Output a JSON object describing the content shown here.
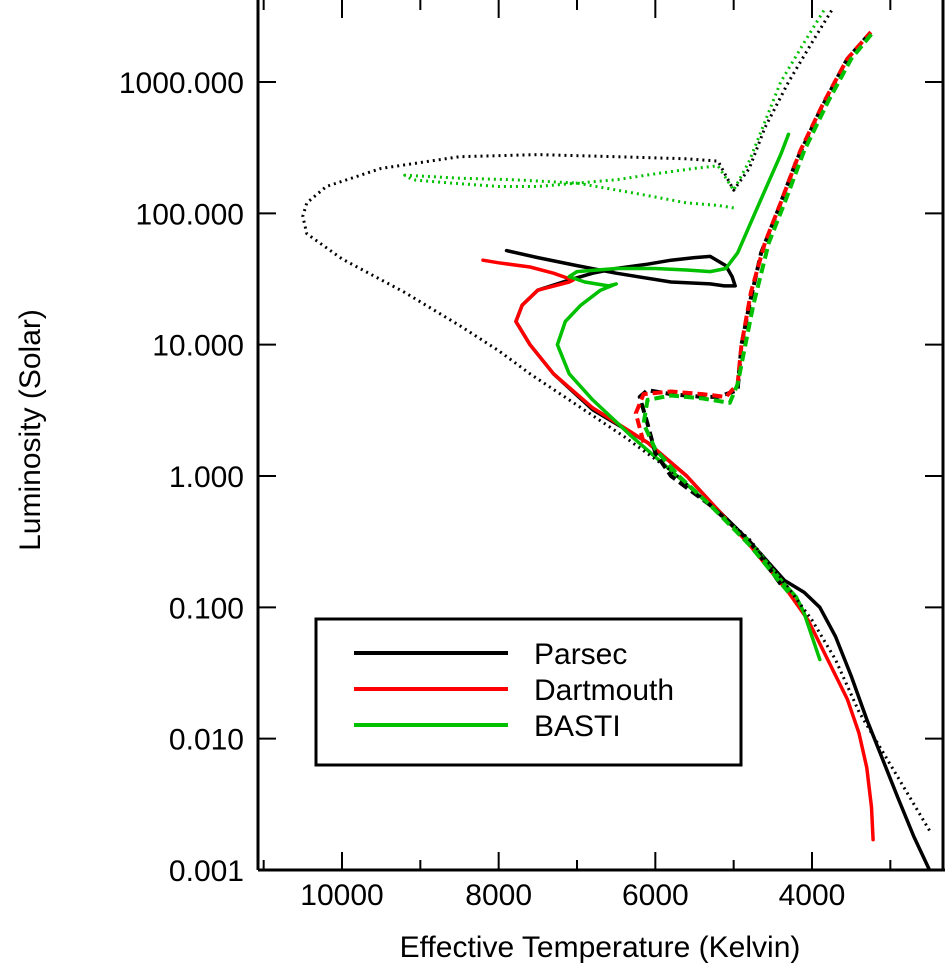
{
  "chart_data": {
    "type": "line",
    "title": "",
    "xlabel": "Effective Temperature (Kelvin)",
    "ylabel": "Luminosity (Solar)",
    "xlim": [
      11000,
      2500
    ],
    "x_reversed": true,
    "ylim": [
      0.001,
      3000
    ],
    "y_scale": "log",
    "grid": false,
    "xticks": [
      10000,
      8000,
      6000,
      4000
    ],
    "xtick_labels": [
      "10000",
      "8000",
      "6000",
      "4000"
    ],
    "yticks": [
      0.001,
      0.01,
      0.1,
      1,
      10,
      100,
      1000
    ],
    "ytick_labels": [
      "0.001",
      "0.010",
      "0.100",
      "1.000",
      "10.000",
      "100.000",
      "1000.000"
    ],
    "legend": {
      "placement": "lower-left",
      "entries": [
        {
          "label": "Parsec",
          "color": "#000000"
        },
        {
          "label": "Dartmouth",
          "color": "#ff0000"
        },
        {
          "label": "BASTI",
          "color": "#00c000"
        }
      ]
    },
    "series": [
      {
        "name": "Parsec",
        "color": "#000000",
        "style": "solid",
        "width": 3.5,
        "points": [
          [
            2500,
            0.001
          ],
          [
            2700,
            0.0018
          ],
          [
            2900,
            0.0035
          ],
          [
            3100,
            0.007
          ],
          [
            3300,
            0.014
          ],
          [
            3500,
            0.03
          ],
          [
            3700,
            0.06
          ],
          [
            3900,
            0.1
          ],
          [
            4100,
            0.13
          ],
          [
            4350,
            0.16
          ],
          [
            4800,
            0.32
          ],
          [
            5200,
            0.55
          ],
          [
            5600,
            1.0
          ],
          [
            6100,
            1.8
          ],
          [
            6800,
            3.2
          ],
          [
            7300,
            6.0
          ],
          [
            7600,
            10
          ],
          [
            7780,
            15
          ],
          [
            7700,
            20
          ],
          [
            7500,
            26
          ],
          [
            7100,
            31
          ],
          [
            6800,
            35
          ],
          [
            6500,
            38
          ],
          [
            6100,
            41
          ],
          [
            5800,
            44
          ],
          [
            5500,
            46
          ],
          [
            5300,
            47
          ],
          [
            5100,
            40
          ],
          [
            5020,
            33
          ],
          [
            4980,
            28
          ],
          [
            5120,
            28
          ],
          [
            5300,
            29
          ],
          [
            5800,
            30
          ],
          [
            6500,
            35
          ],
          [
            7000,
            40
          ],
          [
            7500,
            46
          ],
          [
            7900,
            52
          ]
        ]
      },
      {
        "name": "Dartmouth",
        "color": "#ff0000",
        "style": "solid",
        "width": 3.5,
        "points": [
          [
            3220,
            0.0017
          ],
          [
            3240,
            0.003
          ],
          [
            3300,
            0.006
          ],
          [
            3400,
            0.011
          ],
          [
            3550,
            0.02
          ],
          [
            3800,
            0.04
          ],
          [
            4050,
            0.08
          ],
          [
            4300,
            0.13
          ],
          [
            4800,
            0.3
          ],
          [
            5200,
            0.55
          ],
          [
            5600,
            1.0
          ],
          [
            6100,
            1.8
          ],
          [
            6800,
            3.3
          ],
          [
            7300,
            6.0
          ],
          [
            7600,
            10
          ],
          [
            7780,
            15
          ],
          [
            7700,
            20
          ],
          [
            7500,
            26
          ],
          [
            7100,
            30
          ],
          [
            7050,
            31
          ],
          [
            7300,
            35
          ],
          [
            7600,
            39
          ],
          [
            8000,
            42
          ],
          [
            8200,
            44
          ]
        ]
      },
      {
        "name": "BASTI",
        "color": "#00c000",
        "style": "solid",
        "width": 3.5,
        "points": [
          [
            3900,
            0.04
          ],
          [
            4000,
            0.06
          ],
          [
            4100,
            0.09
          ],
          [
            4200,
            0.12
          ],
          [
            4350,
            0.15
          ],
          [
            4800,
            0.32
          ],
          [
            5300,
            0.6
          ],
          [
            5800,
            1.1
          ],
          [
            6300,
            2.0
          ],
          [
            6800,
            3.8
          ],
          [
            7100,
            6.0
          ],
          [
            7250,
            10
          ],
          [
            7150,
            15
          ],
          [
            6950,
            20
          ],
          [
            6700,
            26
          ],
          [
            6500,
            29
          ],
          [
            6600,
            28
          ],
          [
            6900,
            30
          ],
          [
            7100,
            33
          ],
          [
            7000,
            36
          ],
          [
            6500,
            38
          ],
          [
            6000,
            38
          ],
          [
            5600,
            37
          ],
          [
            5300,
            36
          ],
          [
            5100,
            38
          ],
          [
            4950,
            50
          ],
          [
            4800,
            80
          ],
          [
            4600,
            150
          ],
          [
            4400,
            280
          ],
          [
            4300,
            400
          ]
        ]
      },
      {
        "name": "",
        "color": "#000000",
        "style": "dotted",
        "width": 3,
        "points": [
          [
            2500,
            0.002
          ],
          [
            2800,
            0.004
          ],
          [
            3100,
            0.008
          ],
          [
            3400,
            0.016
          ],
          [
            3700,
            0.04
          ],
          [
            4000,
            0.08
          ],
          [
            4300,
            0.14
          ],
          [
            4800,
            0.33
          ],
          [
            5300,
            0.6
          ],
          [
            5800,
            1.1
          ],
          [
            6400,
            2.0
          ],
          [
            7100,
            3.8
          ],
          [
            7600,
            6.0
          ],
          [
            8000,
            9
          ],
          [
            8500,
            14
          ],
          [
            9200,
            25
          ],
          [
            10000,
            45
          ],
          [
            10450,
            70
          ],
          [
            10500,
            95
          ],
          [
            10450,
            120
          ],
          [
            10200,
            160
          ],
          [
            9500,
            220
          ],
          [
            8500,
            270
          ],
          [
            7500,
            280
          ],
          [
            6500,
            270
          ],
          [
            5600,
            260
          ],
          [
            5200,
            250
          ],
          [
            5000,
            150
          ],
          [
            4800,
            220
          ],
          [
            4600,
            450
          ],
          [
            4300,
            1000
          ],
          [
            4000,
            2000
          ],
          [
            3750,
            3500
          ]
        ]
      },
      {
        "name": "",
        "color": "#00c000",
        "style": "dotted",
        "width": 3,
        "points": [
          [
            5000,
            110
          ],
          [
            5200,
            115
          ],
          [
            5600,
            120
          ],
          [
            6200,
            140
          ],
          [
            7000,
            170
          ],
          [
            7800,
            180
          ],
          [
            8500,
            185
          ],
          [
            9200,
            195
          ],
          [
            9100,
            180
          ],
          [
            8600,
            170
          ],
          [
            8000,
            160
          ],
          [
            7500,
            160
          ],
          [
            7000,
            170
          ],
          [
            6500,
            180
          ],
          [
            6000,
            200
          ],
          [
            5500,
            220
          ],
          [
            5200,
            230
          ],
          [
            5000,
            150
          ],
          [
            4800,
            250
          ],
          [
            4600,
            500
          ],
          [
            4400,
            1000
          ],
          [
            4100,
            2000
          ],
          [
            3850,
            3500
          ]
        ]
      },
      {
        "name": "",
        "color": "#000000",
        "style": "dashed",
        "width": 4,
        "points": [
          [
            4400,
            0.15
          ],
          [
            4800,
            0.32
          ],
          [
            5300,
            0.6
          ],
          [
            5800,
            1.0
          ],
          [
            6000,
            1.5
          ],
          [
            6100,
            2.5
          ],
          [
            6200,
            4.0
          ],
          [
            6100,
            4.5
          ],
          [
            5800,
            4.2
          ],
          [
            5400,
            4.0
          ],
          [
            5200,
            4.0
          ],
          [
            4950,
            4.5
          ],
          [
            4900,
            10
          ],
          [
            4800,
            20
          ],
          [
            4650,
            50
          ],
          [
            4450,
            100
          ],
          [
            4200,
            250
          ],
          [
            3900,
            600
          ],
          [
            3550,
            1500
          ],
          [
            3220,
            2500
          ]
        ]
      },
      {
        "name": "",
        "color": "#ff0000",
        "style": "dashed",
        "width": 4,
        "points": [
          [
            6150,
            1.8
          ],
          [
            6250,
            3.0
          ],
          [
            6150,
            4.2
          ],
          [
            5800,
            4.4
          ],
          [
            5400,
            4.2
          ],
          [
            5100,
            4.0
          ],
          [
            4950,
            5.0
          ],
          [
            4900,
            10
          ],
          [
            4780,
            25
          ],
          [
            4600,
            60
          ],
          [
            4400,
            120
          ],
          [
            4150,
            300
          ],
          [
            3850,
            700
          ],
          [
            3550,
            1500
          ],
          [
            3250,
            2400
          ]
        ]
      },
      {
        "name": "",
        "color": "#00c000",
        "style": "dashed",
        "width": 4,
        "points": [
          [
            4300,
            0.13
          ],
          [
            4800,
            0.3
          ],
          [
            5300,
            0.6
          ],
          [
            5700,
            1.0
          ],
          [
            6000,
            1.6
          ],
          [
            6150,
            2.5
          ],
          [
            6100,
            3.8
          ],
          [
            5800,
            4.1
          ],
          [
            5400,
            3.9
          ],
          [
            5050,
            3.6
          ],
          [
            4950,
            5.0
          ],
          [
            4850,
            10
          ],
          [
            4750,
            20
          ],
          [
            4550,
            60
          ],
          [
            4350,
            120
          ],
          [
            4100,
            300
          ],
          [
            3800,
            700
          ],
          [
            3500,
            1500
          ],
          [
            3220,
            2400
          ]
        ]
      }
    ]
  }
}
